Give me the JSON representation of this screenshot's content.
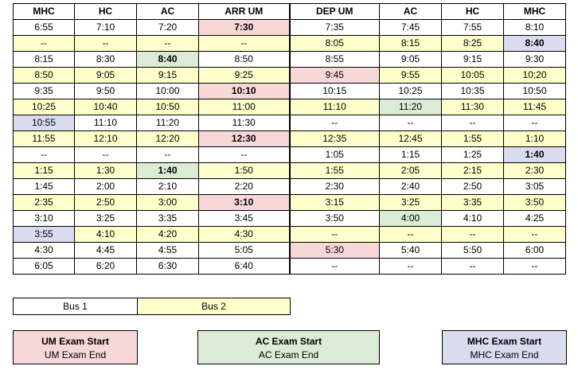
{
  "headers": [
    "MHC",
    "HC",
    "AC",
    "ARR UM",
    "DEP UM",
    "AC",
    "HC",
    "MHC"
  ],
  "rows": [
    {
      "style": "w",
      "cells": [
        {
          "v": "6:55"
        },
        {
          "v": "7:10"
        },
        {
          "v": "7:20"
        },
        {
          "v": "7:30",
          "bold": true,
          "color": "pink"
        },
        {
          "v": "7:35"
        },
        {
          "v": "7:45"
        },
        {
          "v": "7:55"
        },
        {
          "v": "8:10"
        }
      ]
    },
    {
      "style": "y",
      "cells": [
        {
          "v": "--"
        },
        {
          "v": "--"
        },
        {
          "v": "--"
        },
        {
          "v": "--"
        },
        {
          "v": "8:05"
        },
        {
          "v": "8:15"
        },
        {
          "v": "8:25"
        },
        {
          "v": "8:40",
          "bold": true,
          "color": "blue"
        }
      ]
    },
    {
      "style": "w",
      "cells": [
        {
          "v": "8:15"
        },
        {
          "v": "8:30"
        },
        {
          "v": "8:40",
          "bold": true,
          "color": "green"
        },
        {
          "v": "8:50"
        },
        {
          "v": "8:55"
        },
        {
          "v": "9:05"
        },
        {
          "v": "9:15"
        },
        {
          "v": "9:30"
        }
      ]
    },
    {
      "style": "y",
      "cells": [
        {
          "v": "8:50"
        },
        {
          "v": "9:05"
        },
        {
          "v": "9:15"
        },
        {
          "v": "9:25"
        },
        {
          "v": "9:45",
          "color": "pink"
        },
        {
          "v": "9:55"
        },
        {
          "v": "10:05"
        },
        {
          "v": "10:20"
        }
      ]
    },
    {
      "style": "w",
      "cells": [
        {
          "v": "9:35"
        },
        {
          "v": "9:50"
        },
        {
          "v": "10:00"
        },
        {
          "v": "10:10",
          "bold": true,
          "color": "pink"
        },
        {
          "v": "10:15"
        },
        {
          "v": "10:25"
        },
        {
          "v": "10:35"
        },
        {
          "v": "10:50"
        }
      ]
    },
    {
      "style": "y",
      "cells": [
        {
          "v": "10:25"
        },
        {
          "v": "10:40"
        },
        {
          "v": "10:50"
        },
        {
          "v": "11:00"
        },
        {
          "v": "11:10"
        },
        {
          "v": "11:20",
          "color": "green"
        },
        {
          "v": "11:30"
        },
        {
          "v": "11:45"
        }
      ]
    },
    {
      "style": "w",
      "cells": [
        {
          "v": "10:55",
          "color": "blue"
        },
        {
          "v": "11:10"
        },
        {
          "v": "11:20"
        },
        {
          "v": "11:30"
        },
        {
          "v": "--"
        },
        {
          "v": "--"
        },
        {
          "v": "--"
        },
        {
          "v": "--"
        }
      ]
    },
    {
      "style": "y",
      "cells": [
        {
          "v": "11:55"
        },
        {
          "v": "12:10"
        },
        {
          "v": "12:20"
        },
        {
          "v": "12:30",
          "bold": true,
          "color": "pink"
        },
        {
          "v": "12:35"
        },
        {
          "v": "12:45"
        },
        {
          "v": "1:55"
        },
        {
          "v": "1:10"
        }
      ]
    },
    {
      "style": "w",
      "cells": [
        {
          "v": "--"
        },
        {
          "v": "--"
        },
        {
          "v": "--"
        },
        {
          "v": "--"
        },
        {
          "v": "1:05"
        },
        {
          "v": "1:15"
        },
        {
          "v": "1:25"
        },
        {
          "v": "1:40",
          "bold": true,
          "color": "blue"
        }
      ]
    },
    {
      "style": "y",
      "cells": [
        {
          "v": "1:15"
        },
        {
          "v": "1:30"
        },
        {
          "v": "1:40",
          "bold": true,
          "color": "green"
        },
        {
          "v": "1:50"
        },
        {
          "v": "1:55"
        },
        {
          "v": "2:05"
        },
        {
          "v": "2:15"
        },
        {
          "v": "2:30"
        }
      ]
    },
    {
      "style": "w",
      "cells": [
        {
          "v": "1:45"
        },
        {
          "v": "2:00"
        },
        {
          "v": "2:10"
        },
        {
          "v": "2:20"
        },
        {
          "v": "2:30"
        },
        {
          "v": "2:40"
        },
        {
          "v": "2:50"
        },
        {
          "v": "3:05"
        }
      ]
    },
    {
      "style": "y",
      "cells": [
        {
          "v": "2:35"
        },
        {
          "v": "2:50"
        },
        {
          "v": "3:00"
        },
        {
          "v": "3:10",
          "bold": true,
          "color": "pink"
        },
        {
          "v": "3:15"
        },
        {
          "v": "3:25"
        },
        {
          "v": "3:35"
        },
        {
          "v": "3:50"
        }
      ]
    },
    {
      "style": "w",
      "cells": [
        {
          "v": "3:10"
        },
        {
          "v": "3:25"
        },
        {
          "v": "3:35"
        },
        {
          "v": "3:45"
        },
        {
          "v": "3:50"
        },
        {
          "v": "4:00",
          "color": "green"
        },
        {
          "v": "4:10"
        },
        {
          "v": "4:25"
        }
      ]
    },
    {
      "style": "y",
      "cells": [
        {
          "v": "3:55",
          "color": "blue"
        },
        {
          "v": "4:10"
        },
        {
          "v": "4:20"
        },
        {
          "v": "4:30"
        },
        {
          "v": "--"
        },
        {
          "v": "--"
        },
        {
          "v": "--"
        },
        {
          "v": "--"
        }
      ]
    },
    {
      "style": "w",
      "cells": [
        {
          "v": "4:30"
        },
        {
          "v": "4:45"
        },
        {
          "v": "4:55"
        },
        {
          "v": "5:05"
        },
        {
          "v": "5:30",
          "color": "pink"
        },
        {
          "v": "5:40"
        },
        {
          "v": "5:50"
        },
        {
          "v": "6:00"
        }
      ]
    },
    {
      "style": "w",
      "cells": [
        {
          "v": "6:05"
        },
        {
          "v": "6:20"
        },
        {
          "v": "6:30"
        },
        {
          "v": "6:40"
        },
        {
          "v": "--"
        },
        {
          "v": "--"
        },
        {
          "v": "--"
        },
        {
          "v": "--"
        }
      ]
    }
  ],
  "legend": {
    "bus1": "Bus 1",
    "bus2": "Bus 2",
    "um_start": "UM Exam Start",
    "um_end": "UM Exam End",
    "ac_start": "AC Exam Start",
    "ac_end": "AC Exam End",
    "mhc_start": "MHC Exam Start",
    "mhc_end": "MHC Exam End"
  },
  "colors": {
    "bus2": "#ffffcc",
    "um": "#f8d7d8",
    "ac": "#dcebd6",
    "mhc": "#d9dcef"
  }
}
